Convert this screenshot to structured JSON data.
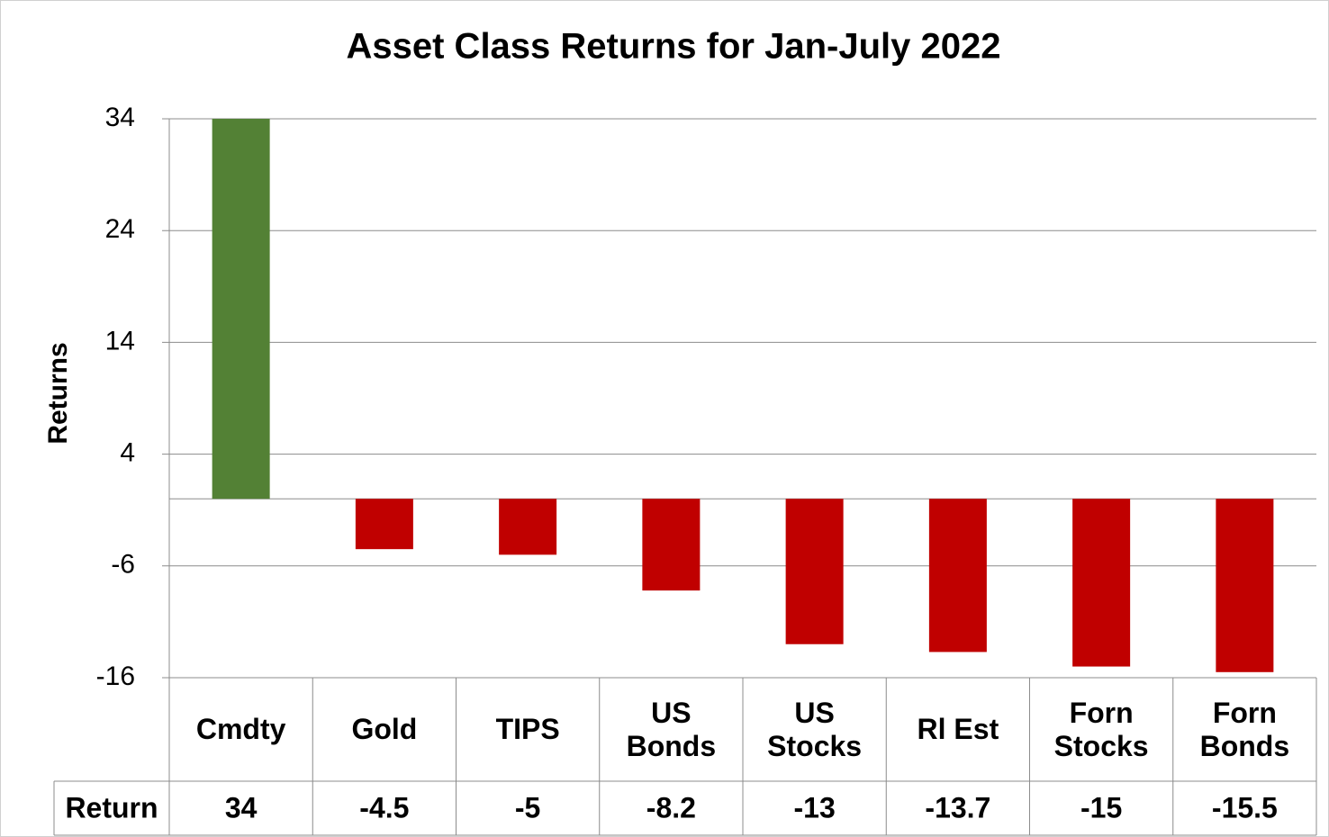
{
  "chart_data": {
    "type": "bar",
    "title": "Asset Class Returns for Jan-July 2022",
    "y_label": "Returns",
    "categories": [
      "Cmdty",
      "Gold",
      "TIPS",
      "US Bonds",
      "US Stocks",
      "Rl Est",
      "Forn Stocks",
      "Forn Bonds"
    ],
    "series": [
      {
        "name": "Return",
        "values": [
          34,
          -4.5,
          -5,
          -8.2,
          -13,
          -13.7,
          -15,
          -15.5
        ]
      }
    ],
    "positive_color": "#538135",
    "negative_color": "#c00000",
    "ylim": [
      -16,
      34
    ],
    "yticks": [
      -16,
      -6,
      4,
      14,
      24,
      34
    ],
    "grid": true,
    "data_table": true
  }
}
